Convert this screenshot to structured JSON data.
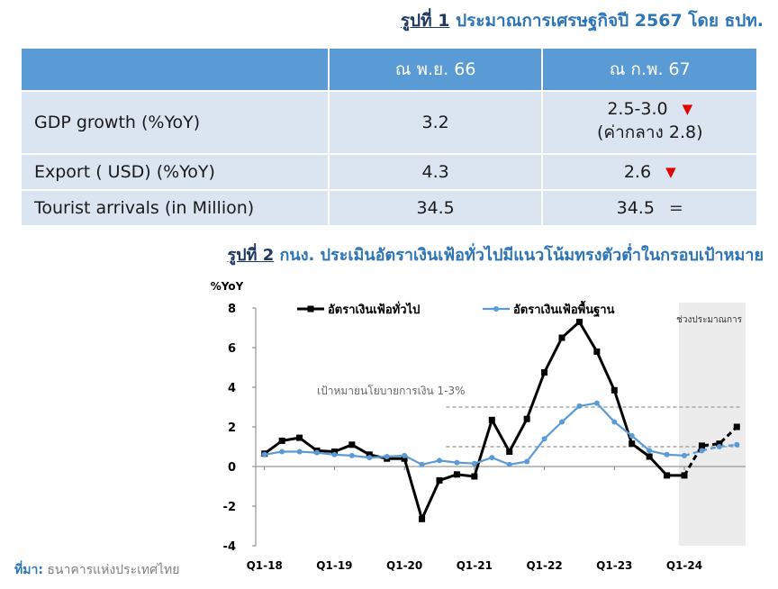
{
  "figure1": {
    "number": "รูปที่ 1",
    "title": "ประมาณการเศรษฐกิจปี 2567 โดย ธปท."
  },
  "table": {
    "headers": [
      "",
      "ณ พ.ย. 66",
      "ณ ก.พ. 67"
    ],
    "rows": [
      {
        "label": "GDP growth (%YoY)",
        "nov66": "3.2",
        "feb67": "2.5-3.0",
        "feb67_note": "(ค่ากลาง 2.8)",
        "change": "▼"
      },
      {
        "label": "Export ( USD) (%YoY)",
        "nov66": "4.3",
        "feb67": "2.6",
        "change": "▼"
      },
      {
        "label": "Tourist arrivals (in Million)",
        "nov66": "34.5",
        "feb67": "34.5",
        "change": "="
      }
    ]
  },
  "figure2": {
    "number": "รูปที่ 2",
    "title": "กนง. ประเมินอัตราเงินเฟ้อทั่วไปมีแนวโน้มทรงตัวต่ำในกรอบเป้าหมาย"
  },
  "source": {
    "label": "ที่มา:",
    "text": "ธนาคารแห่งประเทศไทย"
  },
  "colors": {
    "headline": "#000000",
    "core": "#5b9bd5",
    "target": "#a6a6a6",
    "header_bg": "#5b9bd5",
    "cell_bg": "#dbe5f1",
    "down": "#e00000"
  },
  "chart_data": {
    "type": "line",
    "ylabel": "%YoY",
    "ylim": [
      -4,
      8
    ],
    "yticks": [
      -4,
      -2,
      0,
      2,
      4,
      6,
      8
    ],
    "x_tick_labels": [
      "Q1-18",
      "Q1-19",
      "Q1-20",
      "Q1-21",
      "Q1-22",
      "Q1-23",
      "Q1-24"
    ],
    "x": [
      "Q1-18",
      "Q2-18",
      "Q3-18",
      "Q4-18",
      "Q1-19",
      "Q2-19",
      "Q3-19",
      "Q4-19",
      "Q1-20",
      "Q2-20",
      "Q3-20",
      "Q4-20",
      "Q1-21",
      "Q2-21",
      "Q3-21",
      "Q4-21",
      "Q1-22",
      "Q2-22",
      "Q3-22",
      "Q4-22",
      "Q1-23",
      "Q2-23",
      "Q3-23",
      "Q4-23",
      "Q1-24",
      "Q2-24",
      "Q3-24",
      "Q4-24"
    ],
    "series": [
      {
        "name": "อัตราเงินเฟ้อทั่วไป",
        "values": [
          0.65,
          1.3,
          1.45,
          0.8,
          0.75,
          1.1,
          0.6,
          0.4,
          0.4,
          -2.65,
          -0.7,
          -0.4,
          -0.5,
          2.35,
          0.75,
          2.4,
          4.75,
          6.5,
          7.3,
          5.8,
          3.85,
          1.15,
          0.5,
          -0.45,
          -0.45,
          1.05,
          1.15,
          2.0
        ],
        "forecast_from_index": 24
      },
      {
        "name": "อัตราเงินเฟ้อพื้นฐาน",
        "values": [
          0.6,
          0.75,
          0.75,
          0.7,
          0.6,
          0.55,
          0.45,
          0.5,
          0.55,
          0.1,
          0.3,
          0.2,
          0.15,
          0.45,
          0.1,
          0.25,
          1.4,
          2.25,
          3.05,
          3.2,
          2.25,
          1.55,
          0.8,
          0.6,
          0.55,
          0.8,
          1.0,
          1.1
        ],
        "forecast_from_index": 24
      }
    ],
    "target_band": {
      "label": "เป้าหมายนโยบายการเงิน 1-3%",
      "lower": 1,
      "upper": 3,
      "start_index": 11
    },
    "forecast_region": {
      "label": "ช่วงประมาณการ",
      "start_index": 24
    },
    "legend_placement": "top"
  }
}
